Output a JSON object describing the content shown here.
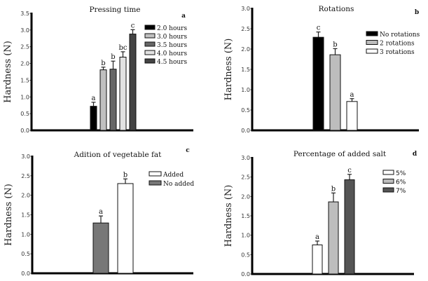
{
  "chart_data": [
    {
      "id": "a",
      "type": "bar",
      "panel_label": "a",
      "title": "Pressing time",
      "xlabel": "",
      "ylabel": "Hardness (N)",
      "ylim": [
        0,
        3.5
      ],
      "yticks": [
        "0.0",
        "0.5",
        "1.0",
        "1.5",
        "2.0",
        "2.5",
        "3.0",
        "3.5"
      ],
      "grid": false,
      "legend_position": "top-right",
      "categories": [
        "2.0 hours",
        "3.0 hours",
        "3.5 hours",
        "4.0 hours",
        "4.5 hours"
      ],
      "values": [
        0.72,
        1.81,
        1.83,
        2.19,
        2.88
      ],
      "errors": [
        0.12,
        0.08,
        0.24,
        0.16,
        0.13
      ],
      "significance": [
        "a",
        "b",
        "b",
        "bc",
        "c"
      ],
      "colors": [
        "#000000",
        "#c0c0c0",
        "#666666",
        "#e2e2e2",
        "#444444"
      ]
    },
    {
      "id": "b",
      "type": "bar",
      "panel_label": "b",
      "title": "Rotations",
      "xlabel": "",
      "ylabel": "Hardness (N)",
      "ylim": [
        0,
        3.0
      ],
      "yticks": [
        "0.0",
        "0.5",
        "1.0",
        "1.5",
        "2.0",
        "2.5",
        "3.0"
      ],
      "grid": false,
      "legend_position": "top-right",
      "categories": [
        "No rotations",
        "2 rotations",
        "3 rotations"
      ],
      "values": [
        2.29,
        1.86,
        0.71
      ],
      "errors": [
        0.13,
        0.15,
        0.07
      ],
      "significance": [
        "c",
        "b",
        "a"
      ],
      "colors": [
        "#000000",
        "#bdbdbd",
        "#ffffff"
      ]
    },
    {
      "id": "c",
      "type": "bar",
      "panel_label": "c",
      "title": "Adition of vegetable fat",
      "xlabel": "",
      "ylabel": "Hardness (N)",
      "ylim": [
        0,
        3.0
      ],
      "yticks": [
        "0.0",
        "0.5",
        "1.0",
        "1.5",
        "2.0",
        "2.5",
        "3.0"
      ],
      "grid": false,
      "legend_position": "top-right",
      "categories": [
        "No added",
        "Added"
      ],
      "legend_order": [
        "Added",
        "No added"
      ],
      "values": [
        1.29,
        2.3
      ],
      "errors": [
        0.18,
        0.12
      ],
      "significance": [
        "a",
        "b"
      ],
      "colors": [
        "#777777",
        "#ffffff"
      ]
    },
    {
      "id": "d",
      "type": "bar",
      "panel_label": "d",
      "title": "Percentage of added salt",
      "xlabel": "",
      "ylabel": "Hardness (N)",
      "ylim": [
        0,
        3.0
      ],
      "yticks": [
        "0.0",
        "0.5",
        "1.0",
        "1.5",
        "2.0",
        "2.5",
        "3.0"
      ],
      "grid": false,
      "legend_position": "top-right",
      "categories": [
        "5%",
        "6%",
        "7%"
      ],
      "values": [
        0.75,
        1.86,
        2.43
      ],
      "errors": [
        0.1,
        0.23,
        0.14
      ],
      "significance": [
        "a",
        "b",
        "c"
      ],
      "colors": [
        "#ffffff",
        "#bdbdbd",
        "#555555"
      ]
    }
  ]
}
